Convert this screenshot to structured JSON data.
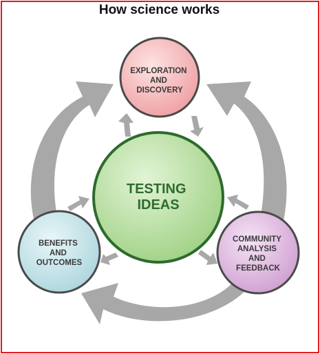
{
  "title": "How science works",
  "nodes": {
    "exploration": {
      "lines": [
        "EXPLORATION",
        "AND",
        "DISCOVERY"
      ]
    },
    "testing": {
      "lines": [
        "TESTING",
        "IDEAS"
      ]
    },
    "benefits": {
      "lines": [
        "BENEFITS",
        "AND",
        "OUTCOMES"
      ]
    },
    "community": {
      "lines": [
        "COMMUNITY",
        "ANALYSIS",
        "AND",
        "FEEDBACK"
      ]
    }
  },
  "colors": {
    "frame": "#e11b1b",
    "arrow": "#a8a8a8",
    "exploration_fill": "#f4b4b6",
    "exploration_stroke": "#4a4a4a",
    "testing_fill": "#b6df9e",
    "testing_stroke": "#2e6a2e",
    "benefits_fill": "#c3e3e8",
    "community_fill": "#ddb6de",
    "node_stroke": "#4a4a4a"
  }
}
